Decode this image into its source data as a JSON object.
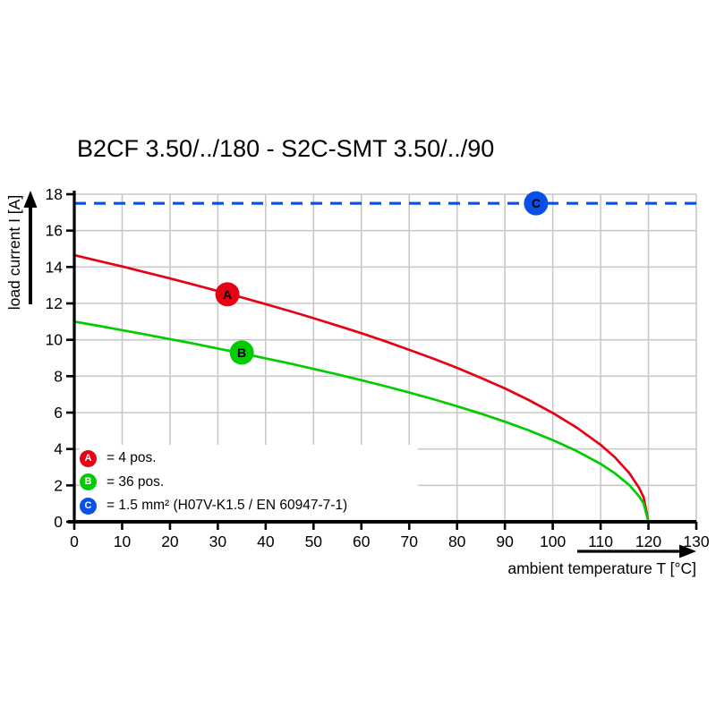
{
  "chart_data": {
    "type": "line",
    "title": "B2CF 3.50/../180 - S2C-SMT 3.50/../90",
    "xlabel": "ambient temperature T [°C]",
    "ylabel": "load current I [A]",
    "xlim": [
      0,
      130
    ],
    "ylim": [
      0,
      18
    ],
    "x_ticks": [
      0,
      10,
      20,
      30,
      40,
      50,
      60,
      70,
      80,
      90,
      100,
      110,
      120,
      130
    ],
    "y_ticks": [
      0,
      2,
      4,
      6,
      8,
      10,
      12,
      14,
      16,
      18
    ],
    "grid": true,
    "grid_color": "#c8c8c8",
    "series": [
      {
        "name": "A",
        "label": "= 4 pos.",
        "color": "#e80013",
        "line_style": "solid",
        "x": [
          0,
          5,
          10,
          15,
          20,
          25,
          30,
          35,
          40,
          45,
          50,
          55,
          60,
          65,
          70,
          75,
          80,
          85,
          90,
          95,
          100,
          105,
          110,
          113,
          116,
          118,
          119,
          120
        ],
        "y": [
          14.65,
          14.34,
          14.03,
          13.7,
          13.37,
          13.03,
          12.68,
          12.33,
          11.96,
          11.58,
          11.19,
          10.78,
          10.36,
          9.92,
          9.45,
          8.97,
          8.46,
          7.91,
          7.33,
          6.69,
          5.98,
          5.18,
          4.23,
          3.54,
          2.67,
          1.89,
          1.34,
          0
        ],
        "marker": {
          "x": 32,
          "y": 12.5,
          "label": "A"
        }
      },
      {
        "name": "B",
        "label": "= 36 pos.",
        "color": "#00cc00",
        "line_style": "solid",
        "x": [
          0,
          5,
          10,
          15,
          20,
          25,
          30,
          35,
          40,
          45,
          50,
          55,
          60,
          65,
          70,
          75,
          80,
          85,
          90,
          95,
          100,
          105,
          110,
          113,
          116,
          118,
          119,
          120
        ],
        "y": [
          11.0,
          10.77,
          10.53,
          10.29,
          10.04,
          9.79,
          9.52,
          9.26,
          8.98,
          8.7,
          8.4,
          8.1,
          7.78,
          7.45,
          7.1,
          6.74,
          6.35,
          5.94,
          5.5,
          5.02,
          4.49,
          3.89,
          3.18,
          2.66,
          2.01,
          1.42,
          1.0,
          0
        ],
        "marker": {
          "x": 35,
          "y": 9.3,
          "label": "B"
        }
      },
      {
        "name": "C",
        "label": "= 1.5 mm² (H07V-K1.5 / EN 60947-7-1)",
        "color": "#0a50e6",
        "line_style": "dashed",
        "x": [
          0,
          130
        ],
        "y": [
          17.5,
          17.5
        ],
        "marker": {
          "x": 96.5,
          "y": 17.5,
          "label": "C"
        }
      }
    ]
  }
}
